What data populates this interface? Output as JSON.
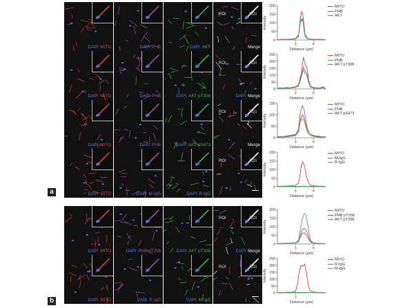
{
  "panel_letters": [
    "a",
    "b"
  ],
  "roi_label": "ROI",
  "colors": {
    "dapi": "#4f7bff",
    "red": "#e23d3d",
    "purple": "#a34fa8",
    "green": "#3fb24e",
    "white": "#e6e6e6",
    "tile_bg": "#111111"
  },
  "rows": [
    {
      "tiles": [
        {
          "dapi": "DAPI",
          "label": "MITO",
          "color": "#e23d3d"
        },
        {
          "dapi": "DAPI",
          "label": "PHB",
          "color": "#a34fa8"
        },
        {
          "dapi": "DAPI",
          "label": "AKT",
          "color": "#3fb24e"
        },
        {
          "dapi": "",
          "label": "Merge",
          "color": "#e6e6e6"
        }
      ]
    },
    {
      "tiles": [
        {
          "dapi": "DAPI",
          "label": "MITO",
          "color": "#e23d3d"
        },
        {
          "dapi": "DAPI",
          "label": "PHB",
          "color": "#a34fa8"
        },
        {
          "dapi": "DAPI",
          "label": "AKT pT308",
          "color": "#3fb24e"
        },
        {
          "dapi": "DAPI",
          "label": "Merge",
          "color": "#e6e6e6"
        }
      ]
    },
    {
      "tiles": [
        {
          "dapi": "DAPI",
          "label": "MITO",
          "color": "#e23d3d"
        },
        {
          "dapi": "DAPI",
          "label": "PHB",
          "color": "#a34fa8"
        },
        {
          "dapi": "DAPI",
          "label": "AKT pS473",
          "color": "#3fb24e"
        },
        {
          "dapi": "",
          "label": "Merge",
          "color": "#e6e6e6"
        }
      ]
    },
    {
      "tiles": [
        {
          "dapi": "DAPI",
          "label": "MITO",
          "color": "#e23d3d"
        },
        {
          "dapi": "DAPI",
          "label": "M-IgG",
          "color": "#a34fa8"
        },
        {
          "dapi": "DAPI",
          "label": "R-IgG",
          "color": "#3fb24e"
        },
        {
          "dapi": "",
          "label": "",
          "color": "#e6e6e6"
        }
      ]
    },
    {
      "tiles": [
        {
          "dapi": "DAPI",
          "label": "MITO",
          "color": "#e23d3d"
        },
        {
          "dapi": "DAPI",
          "label": "PHB pT258",
          "color": "#a34fa8"
        },
        {
          "dapi": "DAPI",
          "label": "AKT pT308",
          "color": "#3fb24e"
        },
        {
          "dapi": "DAPI",
          "label": "Merge",
          "color": "#e6e6e6"
        }
      ]
    },
    {
      "tiles": [
        {
          "dapi": "DAPI",
          "label": "MITO",
          "color": "#e23d3d"
        },
        {
          "dapi": "DAPI",
          "label": "R-IgG",
          "color": "#a34fa8"
        },
        {
          "dapi": "DAPI",
          "label": "M-IgG",
          "color": "#3fb24e"
        },
        {
          "dapi": "",
          "label": "",
          "color": "#e6e6e6"
        }
      ]
    }
  ],
  "chart_data": [
    {
      "type": "line",
      "ylabel": "Intensity",
      "xlabel": "Distance (μm)",
      "yticks": [
        0,
        50,
        100,
        150,
        200
      ],
      "ylim": [
        0,
        200
      ],
      "xticks": [
        3,
        6
      ],
      "xlim": [
        0,
        8
      ],
      "legend": [
        "MITO",
        "PHB",
        "AKT"
      ],
      "series": [
        {
          "name": "MITO",
          "color": "#e23d3d",
          "x": [
            0,
            0.5,
            1,
            1.5,
            2,
            2.5,
            3,
            3.5,
            3.8,
            4,
            4.2,
            4.4,
            4.6,
            5,
            5.5,
            6,
            6.5,
            7,
            7.5,
            8
          ],
          "y": [
            2,
            3,
            4,
            3,
            5,
            6,
            8,
            30,
            120,
            165,
            150,
            90,
            30,
            10,
            5,
            4,
            3,
            4,
            3,
            2
          ]
        },
        {
          "name": "PHB",
          "color": "#a34fa8",
          "x": [
            0,
            0.5,
            1,
            1.5,
            2,
            2.5,
            3,
            3.5,
            3.8,
            4,
            4.2,
            4.4,
            4.6,
            5,
            5.5,
            6,
            6.5,
            7,
            7.5,
            8
          ],
          "y": [
            2,
            2,
            3,
            3,
            4,
            5,
            7,
            25,
            100,
            120,
            110,
            80,
            25,
            8,
            4,
            3,
            3,
            3,
            2,
            2
          ]
        },
        {
          "name": "AKT",
          "color": "#3fb24e",
          "x": [
            0,
            0.5,
            1,
            1.5,
            2,
            2.5,
            3,
            3.5,
            3.8,
            4,
            4.2,
            4.4,
            4.6,
            5,
            5.5,
            6,
            6.5,
            7,
            7.5,
            8
          ],
          "y": [
            1,
            2,
            3,
            2,
            3,
            4,
            6,
            20,
            130,
            110,
            125,
            60,
            20,
            7,
            3,
            3,
            2,
            2,
            2,
            1
          ]
        }
      ]
    },
    {
      "type": "line",
      "ylabel": "Intensity",
      "xlabel": "Distance (μm)",
      "yticks": [
        0,
        50,
        100,
        150,
        200,
        250
      ],
      "ylim": [
        0,
        250
      ],
      "xticks": [
        3,
        6
      ],
      "xlim": [
        0,
        8
      ],
      "legend": [
        "MITO",
        "PHB",
        "AKT pT308"
      ],
      "series": [
        {
          "name": "MITO",
          "color": "#e23d3d",
          "x": [
            0,
            0.5,
            1,
            1.5,
            2,
            2.5,
            3,
            3.5,
            4,
            4.3,
            4.6,
            4.9,
            5.2,
            5.5,
            6,
            6.5,
            7,
            7.5,
            8
          ],
          "y": [
            5,
            8,
            6,
            10,
            8,
            12,
            15,
            30,
            120,
            230,
            180,
            150,
            60,
            20,
            10,
            8,
            6,
            15,
            5
          ]
        },
        {
          "name": "PHB",
          "color": "#a34fa8",
          "x": [
            0,
            0.5,
            1,
            1.5,
            2,
            2.5,
            3,
            3.5,
            4,
            4.3,
            4.6,
            4.9,
            5.2,
            5.5,
            6,
            6.5,
            7,
            7.5,
            8
          ],
          "y": [
            3,
            5,
            4,
            8,
            6,
            10,
            12,
            25,
            100,
            160,
            130,
            110,
            45,
            15,
            8,
            6,
            5,
            10,
            4
          ]
        },
        {
          "name": "AKT pT308",
          "color": "#3fb24e",
          "x": [
            0,
            0.5,
            1,
            1.5,
            2,
            2.5,
            3,
            3.5,
            4,
            4.3,
            4.6,
            4.9,
            5.2,
            5.5,
            6,
            6.5,
            7,
            7.5,
            8
          ],
          "y": [
            2,
            4,
            3,
            5,
            4,
            8,
            10,
            20,
            90,
            140,
            110,
            95,
            40,
            12,
            6,
            4,
            3,
            8,
            3
          ]
        }
      ]
    },
    {
      "type": "line",
      "ylabel": "Intensity",
      "xlabel": "Distance (μm)",
      "yticks": [
        0,
        50,
        100,
        150
      ],
      "ylim": [
        0,
        150
      ],
      "xticks": [
        3,
        6
      ],
      "xlim": [
        0,
        8
      ],
      "legend": [
        "MITO",
        "PHB",
        "AKT pS473"
      ],
      "series": [
        {
          "name": "MITO",
          "color": "#e23d3d",
          "x": [
            0,
            0.5,
            1,
            1.5,
            2,
            2.5,
            3,
            3.5,
            3.8,
            4.1,
            4.4,
            4.7,
            5,
            5.5,
            6,
            6.5,
            7,
            7.5,
            8
          ],
          "y": [
            4,
            6,
            5,
            8,
            10,
            12,
            14,
            30,
            80,
            100,
            90,
            60,
            30,
            15,
            10,
            8,
            6,
            5,
            4
          ]
        },
        {
          "name": "PHB",
          "color": "#a34fa8",
          "x": [
            0,
            0.5,
            1,
            1.5,
            2,
            2.5,
            3,
            3.5,
            3.8,
            4.1,
            4.4,
            4.7,
            5,
            5.5,
            6,
            6.5,
            7,
            7.5,
            8
          ],
          "y": [
            3,
            4,
            5,
            6,
            8,
            10,
            12,
            40,
            110,
            140,
            125,
            80,
            35,
            14,
            8,
            6,
            5,
            4,
            3
          ]
        },
        {
          "name": "AKT pS473",
          "color": "#3fb24e",
          "x": [
            0,
            0.5,
            1,
            1.5,
            2,
            2.5,
            3,
            3.5,
            3.8,
            4.1,
            4.4,
            4.7,
            5,
            5.5,
            6,
            6.5,
            7,
            7.5,
            8
          ],
          "y": [
            2,
            3,
            3,
            4,
            5,
            7,
            9,
            25,
            70,
            85,
            75,
            50,
            22,
            10,
            6,
            4,
            3,
            3,
            2
          ]
        }
      ]
    },
    {
      "type": "line",
      "ylabel": "Intensity",
      "xlabel": "Distance (μm)",
      "yticks": [
        0,
        50,
        100,
        150,
        200
      ],
      "ylim": [
        0,
        200
      ],
      "xticks": [
        3,
        6
      ],
      "xlim": [
        0,
        8
      ],
      "legend": [
        "MITO",
        "M-IgG",
        "R-IgG"
      ],
      "series": [
        {
          "name": "MITO",
          "color": "#e23d3d",
          "x": [
            0,
            0.5,
            1,
            1.5,
            2,
            2.5,
            3,
            3.5,
            3.8,
            4,
            4.2,
            4.5,
            4.8,
            5.2,
            5.5,
            6,
            6.5,
            7,
            7.5,
            8
          ],
          "y": [
            2,
            3,
            3,
            4,
            5,
            6,
            8,
            20,
            80,
            130,
            145,
            120,
            60,
            20,
            8,
            5,
            4,
            3,
            3,
            2
          ]
        },
        {
          "name": "M-IgG",
          "color": "#a34fa8",
          "x": [
            0,
            1,
            2,
            3,
            4,
            5,
            6,
            7,
            8
          ],
          "y": [
            1,
            1,
            2,
            2,
            3,
            2,
            2,
            1,
            1
          ]
        },
        {
          "name": "R-IgG",
          "color": "#3fb24e",
          "x": [
            0,
            1,
            2,
            3,
            4,
            5,
            6,
            7,
            8
          ],
          "y": [
            1,
            2,
            1,
            2,
            2,
            2,
            1,
            1,
            1
          ]
        }
      ]
    },
    {
      "type": "line",
      "ylabel": "Intensity",
      "xlabel": "Distance (μm)",
      "yticks": [
        0,
        50,
        100,
        150,
        200
      ],
      "ylim": [
        0,
        200
      ],
      "xticks": [
        3,
        6
      ],
      "xlim": [
        0,
        8
      ],
      "legend": [
        "MITO",
        "PHB pT258",
        "AKT pT308"
      ],
      "series": [
        {
          "name": "MITO",
          "color": "#e23d3d",
          "x": [
            0,
            0.5,
            1,
            1.5,
            2,
            2.5,
            3,
            3.5,
            3.8,
            4.1,
            4.4,
            4.7,
            5,
            5.3,
            5.6,
            6,
            6.5,
            7,
            7.5,
            8
          ],
          "y": [
            2,
            3,
            3,
            4,
            5,
            6,
            8,
            15,
            50,
            80,
            90,
            85,
            60,
            30,
            12,
            6,
            4,
            3,
            2,
            2
          ]
        },
        {
          "name": "PHB pT258",
          "color": "#a34fa8",
          "x": [
            0,
            0.5,
            1,
            1.5,
            2,
            2.5,
            3,
            3.5,
            3.8,
            4.1,
            4.4,
            4.7,
            5,
            5.3,
            5.6,
            6,
            6.5,
            7,
            7.5,
            8
          ],
          "y": [
            2,
            2,
            3,
            3,
            4,
            5,
            7,
            12,
            40,
            60,
            65,
            55,
            40,
            20,
            8,
            5,
            3,
            3,
            2,
            2
          ]
        },
        {
          "name": "AKT pT308",
          "color": "#3fb24e",
          "x": [
            0,
            0.5,
            1,
            1.5,
            2,
            2.5,
            3,
            3.5,
            3.8,
            4.1,
            4.4,
            4.7,
            5,
            5.3,
            5.6,
            6,
            6.5,
            7,
            7.5,
            8
          ],
          "y": [
            1,
            2,
            2,
            3,
            4,
            5,
            7,
            20,
            80,
            140,
            175,
            170,
            120,
            50,
            15,
            6,
            3,
            2,
            2,
            1
          ]
        }
      ]
    },
    {
      "type": "line",
      "ylabel": "Intensity",
      "xlabel": "Distance (μm)",
      "yticks": [
        0,
        50,
        100,
        150,
        200,
        250
      ],
      "ylim": [
        0,
        250
      ],
      "xticks": [
        3
      ],
      "xlim": [
        0,
        8
      ],
      "legend": [
        "MITO",
        "R-IgG",
        "M-IgG"
      ],
      "series": [
        {
          "name": "MITO",
          "color": "#e23d3d",
          "x": [
            0,
            0.5,
            1,
            1.5,
            2,
            2.5,
            3,
            3.3,
            3.6,
            3.9,
            4.2,
            4.5,
            4.8,
            5.1,
            5.4,
            6,
            6.5,
            7,
            7.5,
            8
          ],
          "y": [
            2,
            3,
            3,
            4,
            5,
            6,
            10,
            60,
            150,
            200,
            190,
            210,
            150,
            60,
            15,
            6,
            4,
            3,
            3,
            2
          ]
        },
        {
          "name": "R-IgG",
          "color": "#a34fa8",
          "x": [
            0,
            1,
            2,
            3,
            4,
            5,
            6,
            7,
            8
          ],
          "y": [
            1,
            1,
            2,
            2,
            3,
            2,
            2,
            1,
            1
          ]
        },
        {
          "name": "M-IgG",
          "color": "#3fb24e",
          "x": [
            0,
            1,
            2,
            3,
            4,
            5,
            6,
            7,
            8
          ],
          "y": [
            1,
            2,
            1,
            2,
            2,
            2,
            1,
            1,
            1
          ]
        }
      ]
    }
  ]
}
